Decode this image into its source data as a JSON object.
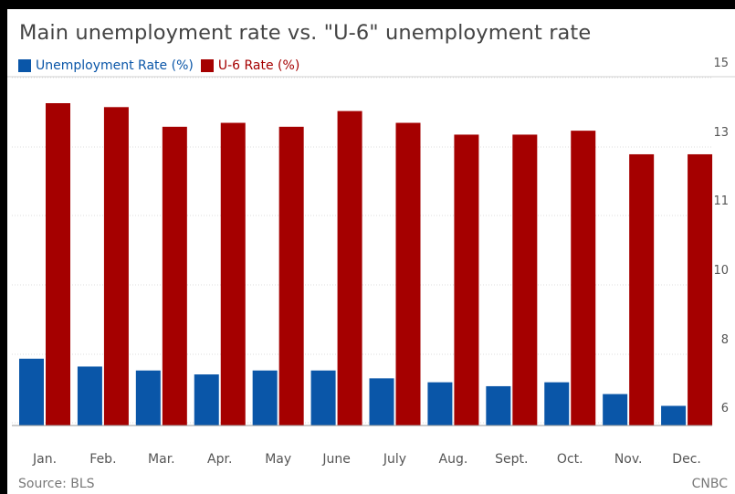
{
  "chart_data": {
    "type": "bar",
    "title": "Main unemployment rate vs. \"U-6\" unemployment rate",
    "categories": [
      "Jan.",
      "Feb.",
      "Mar.",
      "Apr.",
      "May",
      "June",
      "July",
      "Aug.",
      "Sept.",
      "Oct.",
      "Nov.",
      "Dec."
    ],
    "series": [
      {
        "name": "Unemployment Rate (%)",
        "color": "#0a56a8",
        "values": [
          7.9,
          7.7,
          7.6,
          7.5,
          7.6,
          7.6,
          7.4,
          7.3,
          7.2,
          7.3,
          7.0,
          6.7
        ]
      },
      {
        "name": "U-6 Rate (%)",
        "color": "#a50000",
        "values": [
          14.4,
          14.3,
          13.8,
          13.9,
          13.8,
          14.2,
          13.9,
          13.6,
          13.6,
          13.7,
          13.1,
          13.1
        ]
      }
    ],
    "yticks": [
      15,
      13,
      11,
      10,
      8,
      6
    ],
    "ylim": [
      6,
      15
    ],
    "grid": true,
    "legend_position": "top-left",
    "source": "Source: BLS",
    "credit": "CNBC"
  }
}
